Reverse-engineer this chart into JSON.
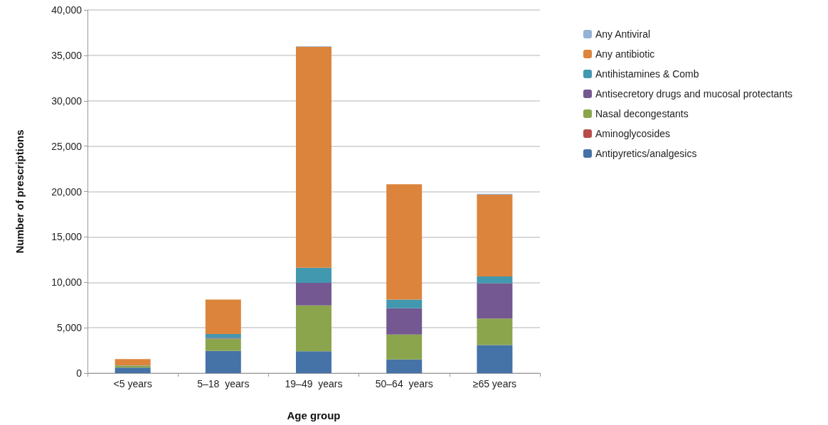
{
  "chart_data": {
    "type": "bar",
    "stacked": true,
    "xlabel": "Age group",
    "ylabel": "Number of prescriptions",
    "categories": [
      "<5 years",
      "5–18  years",
      "19–49  years",
      "50–64  years",
      "≥65 years"
    ],
    "ylim": [
      0,
      40000
    ],
    "yticks": [
      {
        "value": 0,
        "label": "0"
      },
      {
        "value": 5000,
        "label": "5,000"
      },
      {
        "value": 10000,
        "label": "10,000"
      },
      {
        "value": 15000,
        "label": "15,000"
      },
      {
        "value": 20000,
        "label": "20,000"
      },
      {
        "value": 25000,
        "label": "25,000"
      },
      {
        "value": 30000,
        "label": "30,000"
      },
      {
        "value": 35000,
        "label": "35,000"
      },
      {
        "value": 40000,
        "label": "40,000"
      }
    ],
    "grid": "y",
    "legend": "top right",
    "series": [
      {
        "name": "Antipyretics/analgesics",
        "color": "#4572a7",
        "values": [
          600,
          2450,
          2400,
          1500,
          3100
        ]
      },
      {
        "name": "Aminoglycosides",
        "color": "#b84b48",
        "values": [
          0,
          0,
          0,
          0,
          0
        ]
      },
      {
        "name": "Nasal decongestants",
        "color": "#8ba54c",
        "values": [
          200,
          1350,
          5050,
          2750,
          2900
        ]
      },
      {
        "name": "Antisecretory drugs and mucosal protectants",
        "color": "#735891",
        "values": [
          0,
          100,
          2500,
          2900,
          3900
        ]
      },
      {
        "name": "Antihistamines & Comb",
        "color": "#4198af",
        "values": [
          50,
          400,
          1650,
          950,
          750
        ]
      },
      {
        "name": "Any antibiotic",
        "color": "#dc843c",
        "values": [
          700,
          3800,
          24350,
          12700,
          9000
        ]
      },
      {
        "name": "Any Antiviral",
        "color": "#95b3d7",
        "values": [
          0,
          0,
          50,
          0,
          100
        ]
      }
    ]
  }
}
